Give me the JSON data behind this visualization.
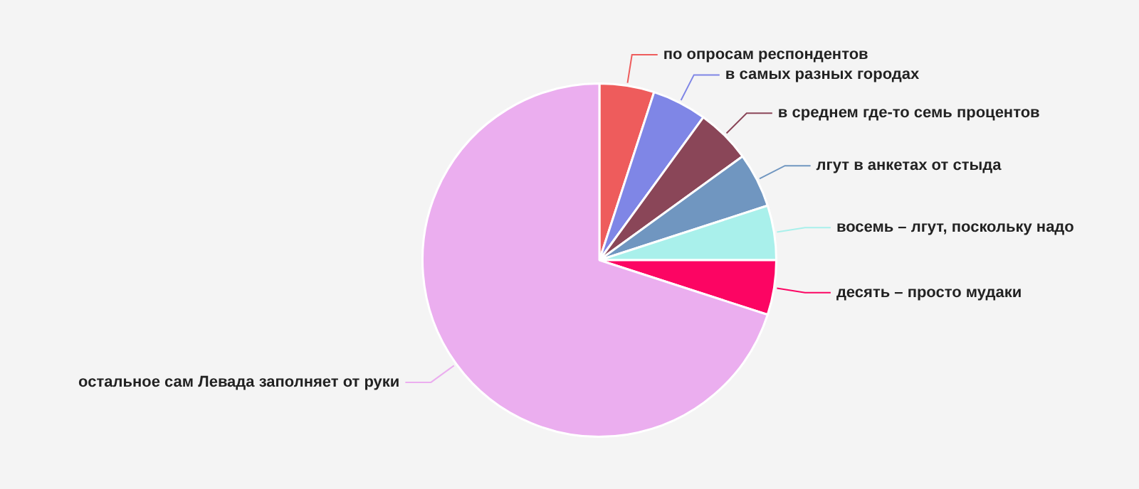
{
  "chart_data": {
    "type": "pie",
    "categories": [
      "по опросам респондентов",
      "в самых разных городах",
      "в среднем где-то семь процентов",
      "лгут в анкетах от стыда",
      "восемь – лгут, поскольку надо",
      "десять – просто мудаки",
      "остальное сам Левада заполняет от руки"
    ],
    "values": [
      5,
      5,
      5,
      5,
      5,
      5,
      70
    ],
    "colors": [
      "#ee5c5c",
      "#7f86e6",
      "#8a4658",
      "#7096c0",
      "#a9f0eb",
      "#fc0563",
      "#ebaeef"
    ],
    "legend": false
  }
}
